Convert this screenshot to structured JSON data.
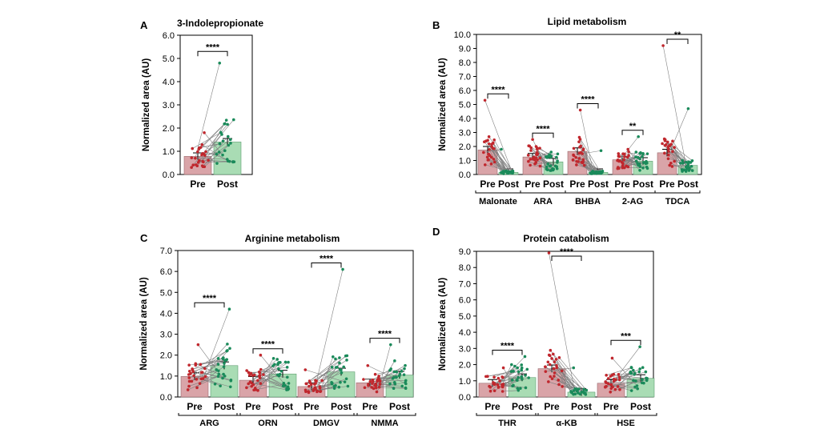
{
  "figure": {
    "colors": {
      "pre_bar": "#d9a4a8",
      "post_bar": "#a9dcb4",
      "pre_dot": "#c0272d",
      "post_dot": "#1a8a5a",
      "line": "#7f7f7f"
    },
    "sig_bars": [
      "****",
      "****",
      "****",
      "****",
      "**",
      "**",
      "****",
      "****",
      "****",
      "****",
      "****",
      "****",
      "***"
    ]
  },
  "chart_data": [
    {
      "panel": "A",
      "title": "3-Indolepropionate",
      "type": "bar",
      "ylabel": "Normalized area (AU)",
      "ylim": [
        0,
        6
      ],
      "yticks": [
        "0.0",
        "1.0",
        "2.0",
        "3.0",
        "4.0",
        "5.0",
        "6.0"
      ],
      "groups": [
        {
          "name": "",
          "pre_label": "Pre",
          "post_label": "Post",
          "pre": 0.78,
          "post": 1.4,
          "pre_max": 1.8,
          "post_max": 4.8,
          "sig": "****"
        }
      ]
    },
    {
      "panel": "B",
      "title": "Lipid metabolism",
      "type": "bar",
      "ylabel": "Normalized area (AU)",
      "ylim": [
        0,
        10
      ],
      "yticks": [
        "0.0",
        "1.0",
        "2.0",
        "3.0",
        "4.0",
        "5.0",
        "6.0",
        "7.0",
        "8.0",
        "9.0",
        "10.0"
      ],
      "groups": [
        {
          "name": "Malonate",
          "pre_label": "Pre",
          "post_label": "Post",
          "pre": 1.75,
          "post": 0.15,
          "pre_max": 5.3,
          "post_max": 1.8,
          "sig": "****"
        },
        {
          "name": "ARA",
          "pre_label": "Pre",
          "post_label": "Post",
          "pre": 1.25,
          "post": 0.9,
          "pre_max": 2.5,
          "post_max": 1.6,
          "sig": "****"
        },
        {
          "name": "BHBA",
          "pre_label": "Pre",
          "post_label": "Post",
          "pre": 1.65,
          "post": 0.15,
          "pre_max": 4.6,
          "post_max": 1.7,
          "sig": "****"
        },
        {
          "name": "2-AG",
          "pre_label": "Pre",
          "post_label": "Post",
          "pre": 1.05,
          "post": 0.95,
          "pre_max": 1.8,
          "post_max": 2.7,
          "sig": "**"
        },
        {
          "name": "TDCA",
          "pre_label": "Pre",
          "post_label": "Post",
          "pre": 1.55,
          "post": 0.65,
          "pre_max": 9.2,
          "post_max": 4.7,
          "sig": "**"
        }
      ]
    },
    {
      "panel": "C",
      "title": "Arginine metabolism",
      "type": "bar",
      "ylabel": "Normalized area (AU)",
      "ylim": [
        0,
        7
      ],
      "yticks": [
        "0.0",
        "1.0",
        "2.0",
        "3.0",
        "4.0",
        "5.0",
        "6.0",
        "7.0"
      ],
      "groups": [
        {
          "name": "ARG",
          "pre_label": "Pre",
          "post_label": "Post",
          "pre": 0.98,
          "post": 1.5,
          "pre_max": 2.5,
          "post_max": 4.2,
          "sig": "****"
        },
        {
          "name": "ORN",
          "pre_label": "Pre",
          "post_label": "Post",
          "pre": 0.8,
          "post": 1.1,
          "pre_max": 2.0,
          "post_max": 1.8,
          "sig": "****"
        },
        {
          "name": "DMGV",
          "pre_label": "Pre",
          "post_label": "Post",
          "pre": 0.5,
          "post": 1.2,
          "pre_max": 1.3,
          "post_max": 6.1,
          "sig": "****"
        },
        {
          "name": "NMMA",
          "pre_label": "Pre",
          "post_label": "Post",
          "pre": 0.68,
          "post": 1.05,
          "pre_max": 1.5,
          "post_max": 2.5,
          "sig": "****"
        }
      ]
    },
    {
      "panel": "D",
      "title": "Protein catabolism",
      "type": "bar",
      "ylabel": "Normalized area (AU)",
      "ylim": [
        0,
        9
      ],
      "yticks": [
        "0.0",
        "1.0",
        "2.0",
        "3.0",
        "4.0",
        "5.0",
        "6.0",
        "7.0",
        "8.0",
        "9.0"
      ],
      "groups": [
        {
          "name": "THR",
          "pre_label": "Pre",
          "post_label": "Post",
          "pre": 0.85,
          "post": 1.2,
          "pre_max": 1.8,
          "post_max": 2.5,
          "sig": "****"
        },
        {
          "name": "α-KB",
          "pre_label": "Pre",
          "post_label": "Post",
          "pre": 1.75,
          "post": 0.3,
          "pre_max": 8.9,
          "post_max": 1.8,
          "sig": "****"
        },
        {
          "name": "HSE",
          "pre_label": "Pre",
          "post_label": "Post",
          "pre": 0.85,
          "post": 1.15,
          "pre_max": 2.4,
          "post_max": 3.1,
          "sig": "***"
        }
      ]
    }
  ]
}
